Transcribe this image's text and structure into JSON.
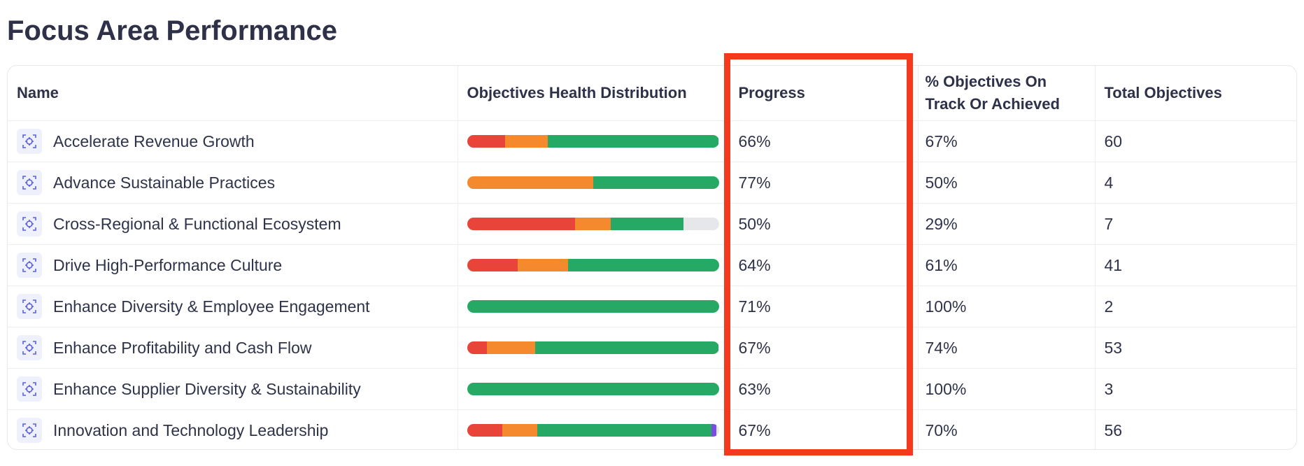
{
  "page": {
    "title": "Focus Area Performance"
  },
  "columns": {
    "name": "Name",
    "distribution": "Objectives Health Distribution",
    "progress": "Progress",
    "on_track": "% Objectives On Track Or Achieved",
    "total": "Total Objectives"
  },
  "colors": {
    "off_track": "#e8443a",
    "at_risk": "#f5892d",
    "on_track": "#27a966",
    "achieved": "#7c4ddf",
    "not_started": "#e6e7ea",
    "highlight": "#f4391e"
  },
  "rows": [
    {
      "name": "Accelerate Revenue Growth",
      "progress": "66%",
      "on_track_pct": "67%",
      "total": "60",
      "distribution": {
        "off_track": 15,
        "at_risk": 17,
        "on_track": 68,
        "achieved": 0,
        "not_started": 0
      }
    },
    {
      "name": "Advance Sustainable Practices",
      "progress": "77%",
      "on_track_pct": "50%",
      "total": "4",
      "distribution": {
        "off_track": 0,
        "at_risk": 50,
        "on_track": 50,
        "achieved": 0,
        "not_started": 0
      }
    },
    {
      "name": "Cross-Regional & Functional Ecosystem",
      "progress": "50%",
      "on_track_pct": "29%",
      "total": "7",
      "distribution": {
        "off_track": 43,
        "at_risk": 14,
        "on_track": 29,
        "achieved": 0,
        "not_started": 14
      }
    },
    {
      "name": "Drive High-Performance Culture",
      "progress": "64%",
      "on_track_pct": "61%",
      "total": "41",
      "distribution": {
        "off_track": 20,
        "at_risk": 20,
        "on_track": 60,
        "achieved": 0,
        "not_started": 0
      }
    },
    {
      "name": "Enhance Diversity & Employee Engagement",
      "progress": "71%",
      "on_track_pct": "100%",
      "total": "2",
      "distribution": {
        "off_track": 0,
        "at_risk": 0,
        "on_track": 100,
        "achieved": 0,
        "not_started": 0
      }
    },
    {
      "name": "Enhance Profitability and Cash Flow",
      "progress": "67%",
      "on_track_pct": "74%",
      "total": "53",
      "distribution": {
        "off_track": 8,
        "at_risk": 19,
        "on_track": 73,
        "achieved": 0,
        "not_started": 0
      }
    },
    {
      "name": "Enhance Supplier Diversity & Sustainability",
      "progress": "63%",
      "on_track_pct": "100%",
      "total": "3",
      "distribution": {
        "off_track": 0,
        "at_risk": 0,
        "on_track": 100,
        "achieved": 0,
        "not_started": 0
      }
    },
    {
      "name": "Innovation and Technology Leadership",
      "progress": "67%",
      "on_track_pct": "70%",
      "total": "56",
      "distribution": {
        "off_track": 14,
        "at_risk": 14,
        "on_track": 69,
        "achieved": 2,
        "not_started": 1
      }
    }
  ]
}
